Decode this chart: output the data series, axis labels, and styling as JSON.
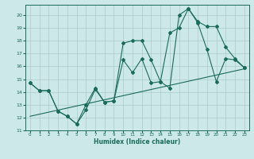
{
  "title": "",
  "xlabel": "Humidex (Indice chaleur)",
  "xlim": [
    -0.5,
    23.5
  ],
  "ylim": [
    11,
    20.8
  ],
  "yticks": [
    11,
    12,
    13,
    14,
    15,
    16,
    17,
    18,
    19,
    20
  ],
  "xticks": [
    0,
    1,
    2,
    3,
    4,
    5,
    6,
    7,
    8,
    9,
    10,
    11,
    12,
    13,
    14,
    15,
    16,
    17,
    18,
    19,
    20,
    21,
    22,
    23
  ],
  "bg_color": "#cce8e8",
  "line_color": "#1a6b5a",
  "grid_color": "#aacccc",
  "line1_x": [
    0,
    1,
    2,
    3,
    4,
    5,
    6,
    7,
    8,
    9,
    10,
    11,
    12,
    13,
    14,
    15,
    16,
    17,
    18,
    19,
    20,
    21,
    22,
    23
  ],
  "line1_y": [
    14.7,
    14.1,
    14.1,
    12.5,
    12.1,
    11.5,
    12.6,
    14.2,
    13.2,
    13.3,
    16.5,
    15.5,
    16.6,
    14.7,
    14.8,
    14.3,
    20.0,
    20.5,
    19.5,
    19.1,
    19.1,
    17.5,
    16.6,
    15.9
  ],
  "line2_x": [
    0,
    1,
    2,
    3,
    4,
    5,
    6,
    7,
    8,
    9,
    10,
    11,
    12,
    13,
    14,
    15,
    16,
    17,
    18,
    19,
    20,
    21,
    22,
    23
  ],
  "line2_y": [
    14.7,
    14.1,
    14.1,
    12.5,
    12.1,
    11.5,
    13.0,
    14.3,
    13.2,
    13.3,
    17.8,
    18.0,
    18.0,
    16.5,
    14.8,
    18.6,
    19.0,
    20.5,
    19.4,
    17.3,
    14.8,
    16.6,
    16.5,
    15.9
  ],
  "line3_x": [
    0,
    23
  ],
  "line3_y": [
    12.1,
    15.8
  ]
}
